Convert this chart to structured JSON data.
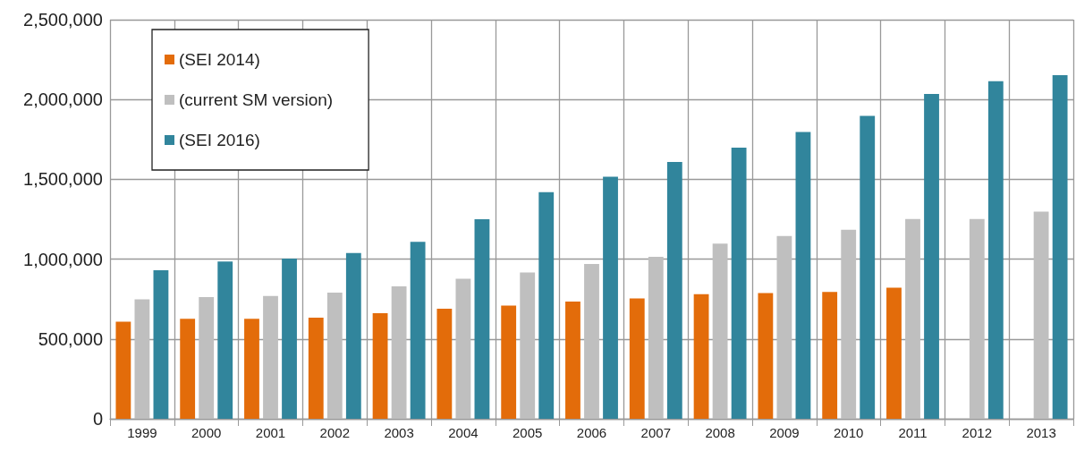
{
  "chart_data": {
    "type": "bar",
    "categories": [
      "1999",
      "2000",
      "2001",
      "2002",
      "2003",
      "2004",
      "2005",
      "2006",
      "2007",
      "2008",
      "2009",
      "2010",
      "2011",
      "2012",
      "2013"
    ],
    "series": [
      {
        "name": "(SEI 2014)",
        "color": "#e36c0a",
        "values": [
          608000,
          627000,
          627000,
          634000,
          662000,
          690000,
          709000,
          734000,
          754000,
          780000,
          788000,
          795000,
          821000,
          null,
          null
        ]
      },
      {
        "name": "(current SM version)",
        "color": "#bfbfbf",
        "values": [
          748000,
          763000,
          769000,
          791000,
          830000,
          877000,
          916000,
          970000,
          1015000,
          1097000,
          1145000,
          1184000,
          1251000,
          1251000,
          1298000
        ]
      },
      {
        "name": "(SEI 2016)",
        "color": "#31859c",
        "values": [
          931000,
          985000,
          1004000,
          1039000,
          1108000,
          1250000,
          1419000,
          1516000,
          1609000,
          1698000,
          1797000,
          1898000,
          2035000,
          2114000,
          2153000
        ]
      }
    ],
    "ylim": [
      0,
      2500000
    ],
    "yticks": [
      0,
      {
        "value": 500000,
        "label": "500,000"
      },
      {
        "value": 1000000,
        "label": "1,000,000"
      },
      {
        "value": 1500000,
        "label": "1,500,000"
      },
      {
        "value": 2000000,
        "label": "2,000,000"
      },
      {
        "value": 2500000,
        "label": "2,500,000"
      }
    ],
    "grid": true,
    "legend": "top left"
  }
}
